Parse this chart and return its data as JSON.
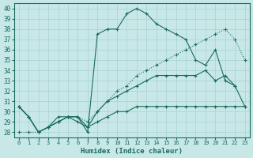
{
  "xlabel": "Humidex (Indice chaleur)",
  "bg_color": "#c8e8e8",
  "grid_color": "#a8d0d0",
  "line_color": "#1a6b5a",
  "xlim": [
    -0.5,
    23.5
  ],
  "ylim": [
    27.5,
    40.5
  ],
  "yticks": [
    28,
    29,
    30,
    31,
    32,
    33,
    34,
    35,
    36,
    37,
    38,
    39,
    40
  ],
  "xticks": [
    0,
    1,
    2,
    3,
    4,
    5,
    6,
    7,
    8,
    9,
    10,
    11,
    12,
    13,
    14,
    15,
    16,
    17,
    18,
    19,
    20,
    21,
    22,
    23
  ],
  "series": [
    {
      "x": [
        0,
        1,
        2,
        3,
        4,
        5,
        6,
        7,
        8,
        9,
        10,
        11,
        12,
        13,
        14,
        15,
        16,
        17,
        18,
        19,
        20,
        21,
        22,
        23
      ],
      "y": [
        30.5,
        29.5,
        28.0,
        28.5,
        29.0,
        29.5,
        29.0,
        28.5,
        29.0,
        29.5,
        30.0,
        30.0,
        30.5,
        30.5,
        30.5,
        30.5,
        30.5,
        30.5,
        30.5,
        30.5,
        30.5,
        30.5,
        30.5,
        30.5
      ]
    },
    {
      "x": [
        0,
        1,
        2,
        3,
        4,
        5,
        6,
        7,
        8,
        9,
        10,
        11,
        12,
        13,
        14,
        15,
        16,
        17,
        18,
        19,
        20,
        21,
        22,
        23
      ],
      "y": [
        30.5,
        29.5,
        28.0,
        28.5,
        29.0,
        29.5,
        29.5,
        28.5,
        30.0,
        31.0,
        31.5,
        32.0,
        32.5,
        33.0,
        33.5,
        33.5,
        33.5,
        33.5,
        33.5,
        34.0,
        33.0,
        33.5,
        32.5,
        30.5
      ]
    },
    {
      "x": [
        0,
        1,
        2,
        3,
        4,
        5,
        6,
        7,
        8,
        9,
        10,
        11,
        12,
        13,
        14,
        15,
        16,
        17,
        18,
        19,
        20,
        21,
        22
      ],
      "y": [
        30.5,
        29.5,
        28.0,
        28.5,
        29.5,
        29.5,
        29.5,
        28.0,
        37.5,
        38.0,
        38.0,
        39.5,
        40.0,
        39.5,
        38.5,
        38.0,
        37.5,
        37.0,
        35.0,
        34.5,
        36.0,
        33.0,
        32.5
      ]
    },
    {
      "x": [
        0,
        1,
        2,
        3,
        4,
        5,
        6,
        7,
        8,
        9,
        10,
        11,
        12,
        13,
        14,
        15,
        16,
        17,
        18,
        19,
        20,
        21,
        22,
        23
      ],
      "y": [
        28.0,
        28.0,
        28.0,
        28.5,
        29.0,
        29.5,
        29.5,
        29.0,
        30.0,
        31.0,
        32.0,
        32.5,
        33.5,
        34.0,
        34.5,
        35.0,
        35.5,
        36.0,
        36.5,
        37.0,
        37.5,
        38.0,
        37.0,
        35.0
      ]
    }
  ]
}
